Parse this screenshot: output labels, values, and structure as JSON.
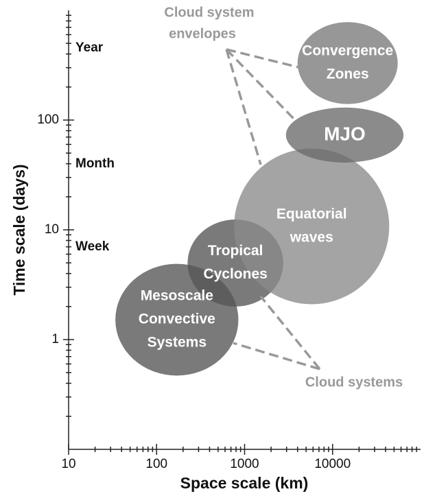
{
  "chart_data": {
    "type": "region",
    "x_label": "Space scale (km)",
    "y_label": "Time scale (days)",
    "xlim": [
      10,
      100000
    ],
    "ylim": [
      0.1,
      1000
    ],
    "xticks": [
      10,
      100,
      1000,
      10000
    ],
    "yticks": [
      1,
      10,
      100
    ],
    "x_log": true,
    "y_log": true,
    "regions": [
      {
        "label": [
          "Mesoscale",
          "Convective",
          "Systems"
        ],
        "x": [
          34,
          850
        ],
        "y": [
          0.47,
          4.9
        ],
        "color": "#555555"
      },
      {
        "label": [
          "Tropical",
          "Cyclones"
        ],
        "x": [
          225,
          2750
        ],
        "y": [
          2.0,
          12.4
        ],
        "color": "#555555"
      },
      {
        "label": [
          "Equatorial",
          "waves"
        ],
        "x": [
          760,
          44000
        ],
        "y": [
          2.1,
          55
        ],
        "color": "#8a8a8a"
      },
      {
        "label": [
          "MJO"
        ],
        "x": [
          2950,
          64000
        ],
        "y": [
          41,
          130
        ],
        "color": "#6a6a6a"
      },
      {
        "label": [
          "Convergence",
          "Zones"
        ],
        "x": [
          4000,
          55000
        ],
        "y": [
          140,
          780
        ],
        "color": "#7a7a7a"
      }
    ],
    "scale_labels": [
      "Year",
      "Month",
      "Week"
    ],
    "annotations": {
      "envelopes": [
        "Cloud system",
        "envelopes"
      ],
      "systems": "Cloud systems"
    }
  }
}
